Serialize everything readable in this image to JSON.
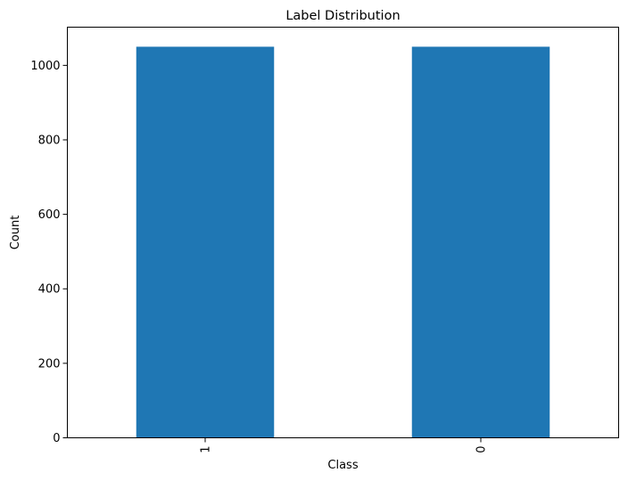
{
  "chart_data": {
    "type": "bar",
    "title": "Label Distribution",
    "xlabel": "Class",
    "ylabel": "Count",
    "categories": [
      "1",
      "0"
    ],
    "values": [
      1050,
      1050
    ],
    "ylim": [
      0,
      1102.5
    ],
    "yticks": [
      0,
      200,
      400,
      600,
      800,
      1000
    ],
    "grid": false,
    "legend": "none",
    "bar_color": "#1f77b4"
  }
}
